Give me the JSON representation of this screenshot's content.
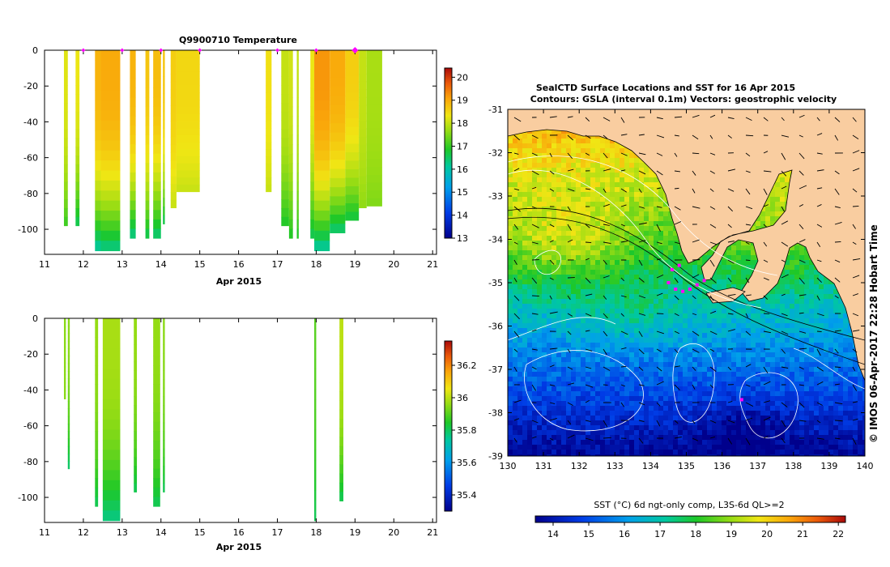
{
  "chart_data": [
    {
      "type": "heatmap",
      "title": "Q9900710  Temperature",
      "xlabel": "Apr 2015",
      "ylabel": "",
      "x_ticks": [
        "11",
        "12",
        "13",
        "14",
        "15",
        "16",
        "17",
        "18",
        "19",
        "20",
        "21"
      ],
      "y_ticks": [
        "0",
        "-20",
        "-40",
        "-60",
        "-80",
        "-100"
      ],
      "xlim": [
        11,
        21.1
      ],
      "ylim": [
        -114,
        0
      ],
      "colorbar": {
        "ticks": [
          "13",
          "14",
          "15",
          "16",
          "17",
          "18",
          "19",
          "20"
        ],
        "range": [
          13,
          20.4
        ]
      },
      "surface_markers": [
        12.0,
        13.0,
        14.0,
        15.0,
        17.0,
        18.0,
        19.0
      ],
      "profiles": [
        {
          "x0": 11.5,
          "x1": 11.6,
          "bottom": -98,
          "value": 18.2,
          "base": 17.0
        },
        {
          "x0": 11.8,
          "x1": 11.9,
          "bottom": -98,
          "value": 18.3,
          "base": 16.5
        },
        {
          "x0": 12.3,
          "x1": 12.45,
          "bottom": -112,
          "value": 18.9,
          "base": 16.0
        },
        {
          "x0": 12.45,
          "x1": 12.95,
          "bottom": -112,
          "value": 19.0,
          "base": 16.2
        },
        {
          "x0": 13.2,
          "x1": 13.35,
          "bottom": -105,
          "value": 18.9,
          "base": 16.2
        },
        {
          "x0": 13.6,
          "x1": 13.7,
          "bottom": -105,
          "value": 18.7,
          "base": 16.5
        },
        {
          "x0": 13.8,
          "x1": 14.0,
          "bottom": -105,
          "value": 18.8,
          "base": 16.3
        },
        {
          "x0": 14.05,
          "x1": 14.1,
          "bottom": -97,
          "value": 18.7,
          "base": 16.5
        },
        {
          "x0": 14.25,
          "x1": 14.4,
          "bottom": -88,
          "value": 18.6,
          "base": 18.0
        },
        {
          "x0": 14.4,
          "x1": 15.0,
          "bottom": -79,
          "value": 18.5,
          "base": 18.0
        },
        {
          "x0": 16.7,
          "x1": 16.85,
          "bottom": -79,
          "value": 18.4,
          "base": 18.0
        },
        {
          "x0": 17.1,
          "x1": 17.3,
          "bottom": -98,
          "value": 18.0,
          "base": 16.8
        },
        {
          "x0": 17.3,
          "x1": 17.4,
          "bottom": -105,
          "value": 18.1,
          "base": 16.8
        },
        {
          "x0": 17.5,
          "x1": 17.55,
          "bottom": -105,
          "value": 18.0,
          "base": 16.8
        },
        {
          "x0": 17.85,
          "x1": 17.95,
          "bottom": -105,
          "value": 18.3,
          "base": 16.5
        },
        {
          "x0": 17.95,
          "x1": 18.35,
          "bottom": -112,
          "value": 19.2,
          "base": 16.0
        },
        {
          "x0": 18.35,
          "x1": 18.75,
          "bottom": -102,
          "value": 19.0,
          "base": 16.3
        },
        {
          "x0": 18.75,
          "x1": 19.1,
          "bottom": -95,
          "value": 18.6,
          "base": 16.6
        },
        {
          "x0": 19.1,
          "x1": 19.3,
          "bottom": -88,
          "value": 18.0,
          "base": 17.6
        },
        {
          "x0": 19.3,
          "x1": 19.7,
          "bottom": -87,
          "value": 17.8,
          "base": 17.5
        }
      ]
    },
    {
      "type": "heatmap",
      "title": "",
      "xlabel": "Apr 2015",
      "ylabel": "",
      "x_ticks": [
        "11",
        "12",
        "13",
        "14",
        "15",
        "16",
        "17",
        "18",
        "19",
        "20",
        "21"
      ],
      "y_ticks": [
        "0",
        "-20",
        "-40",
        "-60",
        "-80",
        "-100"
      ],
      "xlim": [
        11,
        21.1
      ],
      "ylim": [
        -114,
        0
      ],
      "colorbar": {
        "ticks": [
          "35.4",
          "35.6",
          "35.8",
          "36",
          "36.2"
        ],
        "range": [
          35.3,
          36.35
        ]
      },
      "profiles": [
        {
          "x0": 11.5,
          "x1": 11.55,
          "bottom": -45,
          "value": 35.95,
          "base": 35.95
        },
        {
          "x0": 11.6,
          "x1": 11.65,
          "bottom": -84,
          "value": 35.95,
          "base": 35.78
        },
        {
          "x0": 12.3,
          "x1": 12.38,
          "bottom": -105,
          "value": 35.96,
          "base": 35.8
        },
        {
          "x0": 12.5,
          "x1": 12.95,
          "bottom": -113,
          "value": 35.98,
          "base": 35.76
        },
        {
          "x0": 13.3,
          "x1": 13.38,
          "bottom": -97,
          "value": 35.96,
          "base": 35.8
        },
        {
          "x0": 13.8,
          "x1": 13.98,
          "bottom": -105,
          "value": 35.96,
          "base": 35.8
        },
        {
          "x0": 14.05,
          "x1": 14.1,
          "bottom": -97,
          "value": 35.95,
          "base": 35.8
        },
        {
          "x0": 17.95,
          "x1": 18.0,
          "bottom": -113,
          "value": 35.9,
          "base": 35.8
        },
        {
          "x0": 18.6,
          "x1": 18.7,
          "bottom": -102,
          "value": 36.0,
          "base": 35.8
        }
      ]
    },
    {
      "type": "heatmap",
      "title": "SealCTD Surface Locations and SST for 16 Apr 2015",
      "subtitle": "Contours: GSLA (interval 0.1m) Vectors: geostrophic velocity",
      "x_ticks": [
        "130",
        "131",
        "132",
        "133",
        "134",
        "135",
        "136",
        "137",
        "138",
        "139",
        "140"
      ],
      "y_ticks": [
        "-31",
        "-32",
        "-33",
        "-34",
        "-35",
        "-36",
        "-37",
        "-38",
        "-39"
      ],
      "xlim": [
        130,
        140
      ],
      "ylim": [
        -39,
        -31
      ],
      "side_label": "© IMOS 06-Apr-2017 22:28 Hobart Time",
      "colorbar": {
        "label": "SST (°C) 6d ngt-only comp, L3S-6d QL>=2",
        "ticks": [
          "14",
          "15",
          "16",
          "17",
          "18",
          "19",
          "20",
          "21",
          "22"
        ],
        "range": [
          13.5,
          22.2
        ]
      },
      "land_color": "#f9cda0",
      "seal_track": [
        [
          134.5,
          -35.0
        ],
        [
          134.7,
          -35.15
        ],
        [
          134.9,
          -35.2
        ],
        [
          135.1,
          -35.15
        ],
        [
          135.3,
          -35.05
        ],
        [
          135.5,
          -34.95
        ],
        [
          134.6,
          -34.7
        ],
        [
          134.8,
          -34.6
        ],
        [
          136.55,
          -37.7
        ]
      ]
    }
  ]
}
